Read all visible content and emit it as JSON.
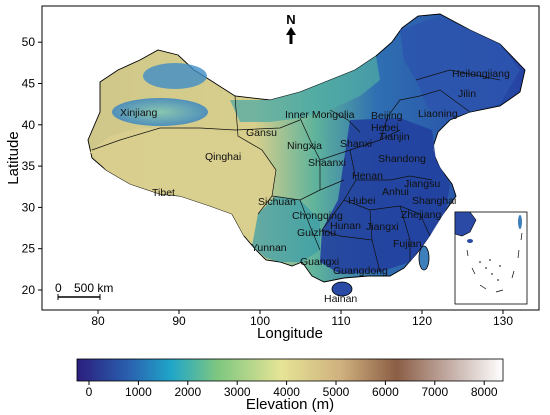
{
  "map": {
    "ylabel": "Latitude",
    "xlabel": "Longitude",
    "north_label": "N",
    "x_ticks": [
      "80",
      "90",
      "100",
      "110",
      "120",
      "130"
    ],
    "y_ticks": [
      "20",
      "25",
      "30",
      "35",
      "40",
      "45",
      "50"
    ],
    "scale_bar": {
      "left_label": "0",
      "right_label": "500 km"
    },
    "province_labels": [
      "Xinjiang",
      "Tibet",
      "Qinghai",
      "Gansu",
      "Inner Mongolia",
      "Heilongjiang",
      "Jilin",
      "Liaoning",
      "Beijing",
      "Hebei",
      "Tianjin",
      "Shanxi",
      "Shaanxi",
      "Ningxia",
      "Shandong",
      "Henan",
      "Jiangsu",
      "Anhui",
      "Shanghai",
      "Hubei",
      "Zhejiang",
      "Sichuan",
      "Chongqing",
      "Hunan",
      "Jiangxi",
      "Fujian",
      "Guizhou",
      "Yunnan",
      "Guangxi",
      "Guangdong",
      "Hainan"
    ]
  },
  "colorbar": {
    "label": "Elevation (m)",
    "ticks": [
      "0",
      "1000",
      "2000",
      "3000",
      "4000",
      "5000",
      "6000",
      "7000",
      "8000"
    ],
    "colors": [
      "#2b1e7d",
      "#2a5fae",
      "#1fa6c9",
      "#7ec77f",
      "#e6e496",
      "#cfb07e",
      "#8b5e45",
      "#c6b0a9",
      "#ffffff"
    ]
  },
  "colors": {
    "tibet": "#d9cf8e",
    "lowland": "#2a4fa8",
    "mid": "#4aa6a4",
    "sea": "#ffffff"
  }
}
